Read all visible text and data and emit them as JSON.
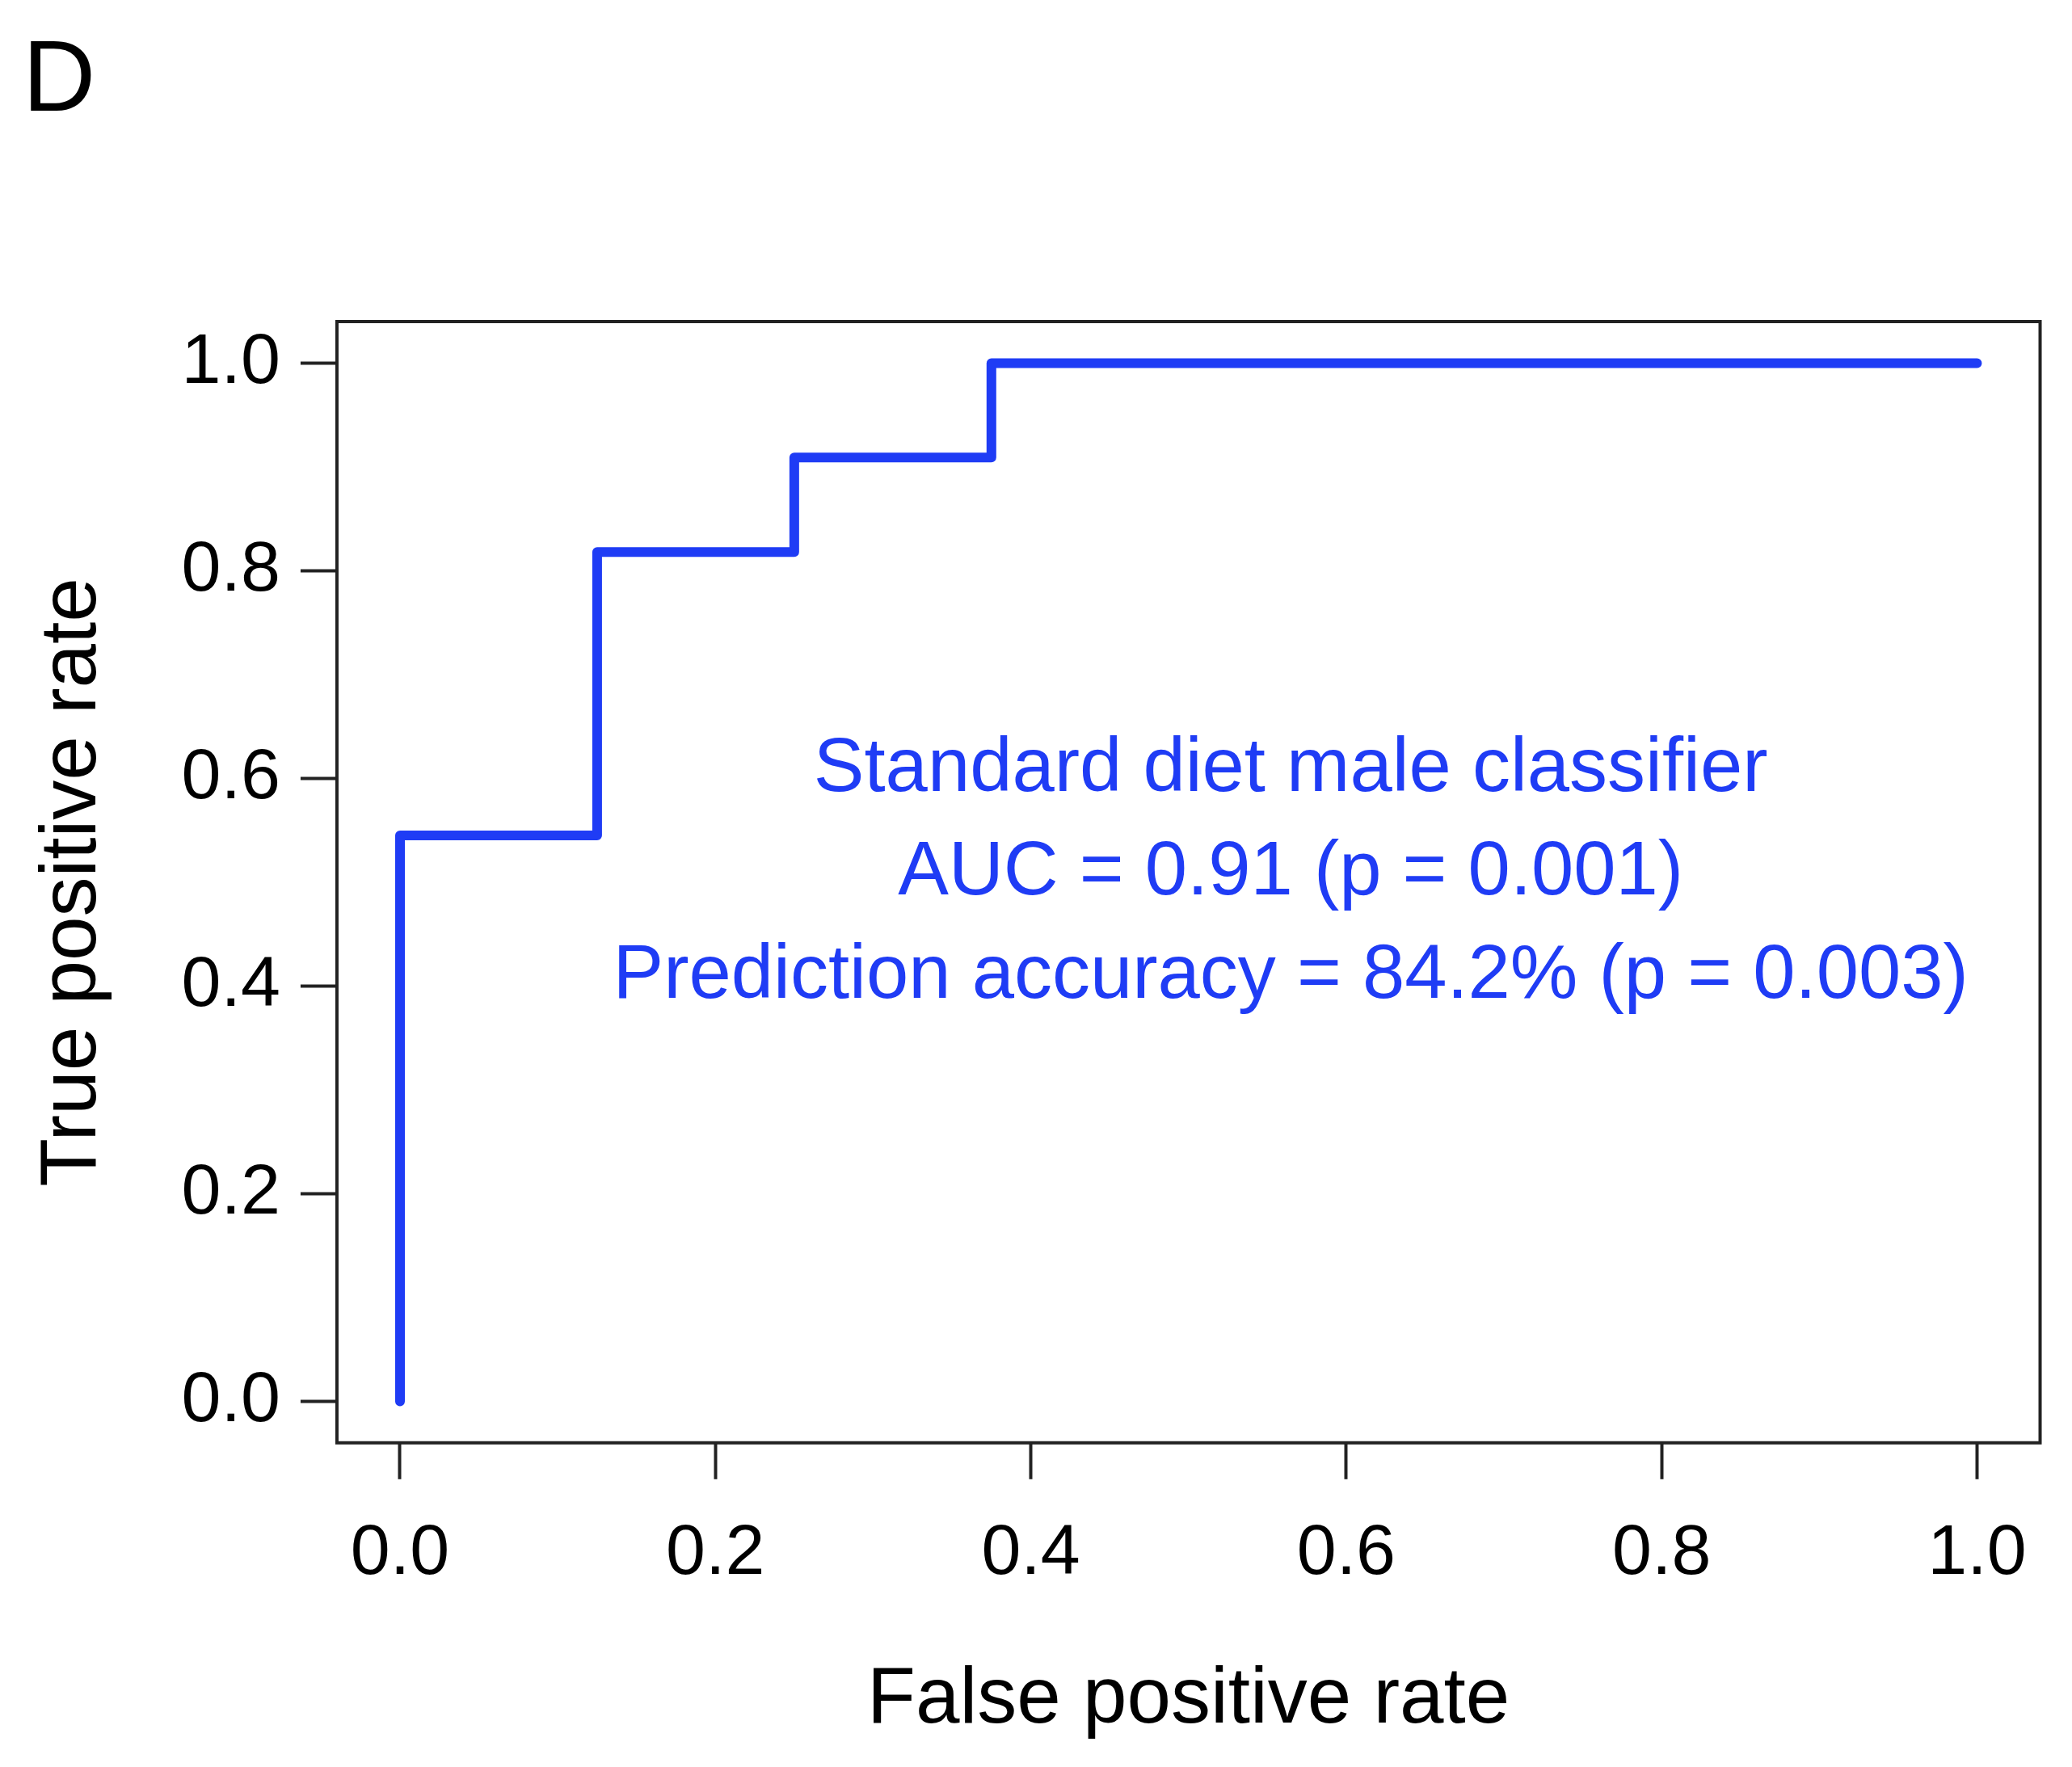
{
  "chart_data": {
    "type": "line",
    "title": "D",
    "xlabel": "False positive rate",
    "ylabel": "True positive rate",
    "x": [
      0,
      0,
      0.125,
      0.125,
      0.25,
      0.25,
      0.375,
      0.375,
      1
    ],
    "series": [
      {
        "color": "#1f3cf5",
        "values": [
          0,
          0.545,
          0.545,
          0.818,
          0.818,
          0.909,
          0.909,
          1,
          1
        ]
      }
    ],
    "xlim": [
      -0.04,
      1.04
    ],
    "ylim": [
      -0.04,
      1.04
    ],
    "xticks": [
      {
        "value": 0,
        "label": "0.0"
      },
      0.2,
      0.4,
      0.6,
      0.8,
      {
        "value": 1,
        "label": "1.0"
      }
    ],
    "yticks": [
      {
        "value": 0,
        "label": "0.0"
      },
      0.2,
      0.4,
      0.6,
      0.8,
      {
        "value": 1,
        "label": "1.0"
      }
    ],
    "grid": false,
    "legend": false,
    "marker": "none",
    "line_style": "solid",
    "annotations": [
      "Standard diet male classifier",
      "AUC = 0.91 (p = 0.001)",
      "Prediction accuracy = 84.2% (p = 0.003)"
    ]
  }
}
